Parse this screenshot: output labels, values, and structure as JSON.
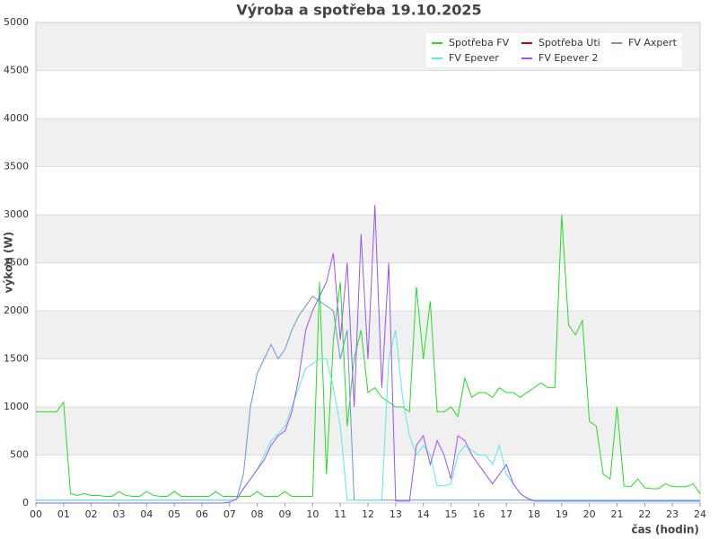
{
  "chart_data": {
    "type": "line",
    "title": "Výroba a spotřeba 19.10.2025",
    "x_label": "čas (hodin)",
    "y_label": "výkon (W)",
    "x": [
      0,
      0.25,
      0.5,
      0.75,
      1,
      1.25,
      1.5,
      1.75,
      2,
      2.25,
      2.5,
      2.75,
      3,
      3.25,
      3.5,
      3.75,
      4,
      4.25,
      4.5,
      4.75,
      5,
      5.25,
      5.5,
      5.75,
      6,
      6.25,
      6.5,
      6.75,
      7,
      7.25,
      7.5,
      7.75,
      8,
      8.25,
      8.5,
      8.75,
      9,
      9.25,
      9.5,
      9.75,
      10,
      10.25,
      10.5,
      10.75,
      11,
      11.25,
      11.5,
      11.75,
      12,
      12.25,
      12.5,
      12.75,
      13,
      13.25,
      13.5,
      13.75,
      14,
      14.25,
      14.5,
      14.75,
      15,
      15.25,
      15.5,
      15.75,
      16,
      16.25,
      16.5,
      16.75,
      17,
      17.25,
      17.5,
      17.75,
      18,
      18.25,
      18.5,
      18.75,
      19,
      19.25,
      19.5,
      19.75,
      20,
      20.25,
      20.5,
      20.75,
      21,
      21.25,
      21.5,
      21.75,
      22,
      22.25,
      22.5,
      22.75,
      23,
      23.25,
      23.5,
      23.75,
      24
    ],
    "xlim": [
      0,
      24
    ],
    "xticks": [
      {
        "value": 0,
        "label": "00"
      },
      {
        "value": 1,
        "label": "01"
      },
      {
        "value": 2,
        "label": "02"
      },
      {
        "value": 3,
        "label": "03"
      },
      {
        "value": 4,
        "label": "04"
      },
      {
        "value": 5,
        "label": "05"
      },
      {
        "value": 6,
        "label": "06"
      },
      {
        "value": 7,
        "label": "07"
      },
      {
        "value": 8,
        "label": "08"
      },
      {
        "value": 9,
        "label": "09"
      },
      10,
      11,
      12,
      13,
      14,
      15,
      16,
      17,
      18,
      19,
      20,
      21,
      22,
      23,
      24
    ],
    "ylim": [
      0,
      5000
    ],
    "yticks": [
      0,
      500,
      1000,
      1500,
      2000,
      2500,
      3000,
      3500,
      4000,
      4500,
      5000
    ],
    "grid": true,
    "legend": "top-right",
    "series": [
      {
        "name": "Spotřeba FV",
        "color": "#22dd22",
        "values": [
          950,
          950,
          950,
          950,
          1050,
          100,
          80,
          100,
          80,
          80,
          70,
          70,
          120,
          80,
          70,
          70,
          120,
          80,
          70,
          70,
          120,
          70,
          70,
          70,
          70,
          70,
          120,
          70,
          70,
          70,
          70,
          70,
          120,
          70,
          70,
          70,
          120,
          70,
          70,
          70,
          70,
          2300,
          300,
          1700,
          2300,
          800,
          1500,
          1800,
          1150,
          1200,
          1100,
          1050,
          1000,
          1000,
          950,
          2250,
          1500,
          2100,
          950,
          950,
          1000,
          900,
          1300,
          1100,
          1150,
          1150,
          1100,
          1200,
          1150,
          1150,
          1100,
          1150,
          1200,
          1250,
          1200,
          1200,
          3000,
          1850,
          1750,
          1900,
          850,
          800,
          300,
          250,
          1000,
          180,
          170,
          250,
          160,
          150,
          150,
          200,
          170,
          170,
          170,
          200,
          100
        ]
      },
      {
        "name": "Spotřeba Uti",
        "color": "#cc0000",
        "values": [
          null,
          null,
          null,
          null,
          null,
          null,
          null,
          null,
          null,
          null,
          null,
          null,
          null,
          null,
          null,
          null,
          null,
          null,
          null,
          null,
          null,
          null,
          null,
          null,
          null,
          null,
          null,
          null,
          null,
          null,
          null,
          null,
          null,
          null,
          null,
          null,
          null,
          null,
          null,
          null,
          null,
          null,
          null,
          null,
          null,
          null,
          null,
          null,
          null,
          null,
          null,
          null,
          null,
          null,
          null,
          null,
          null,
          null,
          null,
          null,
          null,
          null,
          null,
          null,
          null,
          null,
          null,
          null,
          null,
          null,
          null,
          null,
          null,
          null,
          null,
          null,
          null,
          null,
          null,
          null,
          null,
          null,
          null,
          null,
          null,
          null,
          null,
          null,
          null,
          null,
          null,
          null,
          null,
          null,
          null,
          null,
          null
        ]
      },
      {
        "name": "FV Axpert",
        "color": "#6699cc",
        "values": [
          30,
          30,
          30,
          30,
          30,
          30,
          30,
          30,
          30,
          30,
          30,
          30,
          30,
          30,
          30,
          30,
          30,
          30,
          30,
          30,
          30,
          30,
          30,
          30,
          30,
          30,
          30,
          30,
          30,
          40,
          300,
          1000,
          1350,
          1500,
          1650,
          1500,
          1600,
          1800,
          1950,
          2050,
          2150,
          2100,
          2050,
          2000,
          1500,
          1800,
          30,
          30,
          30,
          30,
          30,
          30,
          30,
          30,
          30,
          30,
          30,
          30,
          30,
          30,
          30,
          30,
          30,
          30,
          30,
          30,
          30,
          30,
          30,
          30,
          30,
          30,
          30,
          30,
          30,
          30,
          30,
          30,
          30,
          30,
          30,
          30,
          30,
          30,
          30,
          30,
          30,
          30,
          30,
          30,
          30,
          30,
          30,
          30,
          30,
          30,
          30
        ]
      },
      {
        "name": "FV Epever",
        "color": "#55eedd",
        "values": [
          30,
          30,
          30,
          30,
          30,
          30,
          30,
          30,
          30,
          30,
          30,
          30,
          30,
          30,
          30,
          30,
          30,
          30,
          30,
          30,
          30,
          30,
          30,
          30,
          30,
          30,
          30,
          30,
          30,
          40,
          150,
          250,
          350,
          500,
          650,
          720,
          800,
          1000,
          1200,
          1400,
          1450,
          1500,
          1500,
          1200,
          800,
          30,
          30,
          30,
          30,
          30,
          30,
          1500,
          1800,
          1100,
          700,
          500,
          600,
          500,
          180,
          180,
          200,
          500,
          600,
          550,
          500,
          500,
          400,
          600,
          300,
          200,
          100,
          50,
          30,
          30,
          30,
          30,
          30,
          30,
          30,
          30,
          30,
          30,
          30,
          30,
          30,
          30,
          30,
          30,
          30,
          30,
          30,
          30,
          30,
          30,
          30,
          30,
          30
        ]
      },
      {
        "name": "FV Epever 2",
        "color": "#9955ee",
        "values": [
          0,
          0,
          0,
          0,
          0,
          0,
          0,
          0,
          0,
          0,
          0,
          0,
          0,
          0,
          0,
          0,
          0,
          0,
          0,
          0,
          0,
          0,
          0,
          0,
          0,
          0,
          0,
          0,
          10,
          40,
          150,
          250,
          350,
          450,
          600,
          700,
          750,
          950,
          1300,
          1800,
          2000,
          2150,
          2300,
          2600,
          1700,
          2500,
          1000,
          2800,
          1500,
          3100,
          1200,
          2500,
          20,
          20,
          20,
          600,
          700,
          400,
          650,
          500,
          250,
          700,
          650,
          500,
          400,
          300,
          200,
          300,
          400,
          200,
          100,
          50,
          20,
          20,
          20,
          20,
          20,
          20,
          20,
          20,
          20,
          20,
          20,
          20,
          20,
          20,
          20,
          20,
          20,
          20,
          20,
          20,
          20,
          20,
          20,
          20,
          20
        ]
      }
    ]
  }
}
